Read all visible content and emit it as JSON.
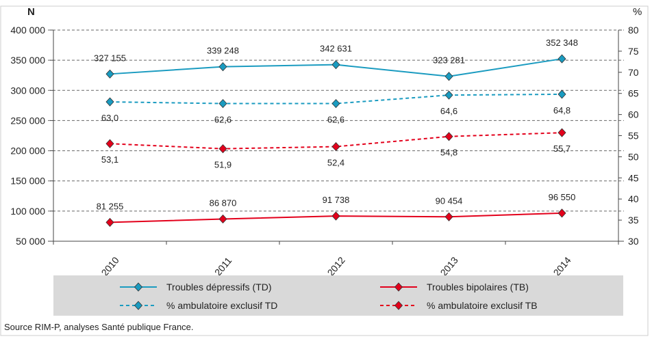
{
  "chart_data": {
    "type": "line",
    "categories": [
      "2010",
      "2011",
      "2012",
      "2013",
      "2014"
    ],
    "left_axis": {
      "label": "N",
      "ylim": [
        50000,
        400000
      ],
      "ticks": [
        "50 000",
        "100 000",
        "150 000",
        "200 000",
        "250 000",
        "300 000",
        "350 000",
        "400 000"
      ]
    },
    "right_axis": {
      "label": "%",
      "ylim": [
        30,
        80
      ],
      "ticks": [
        "30",
        "35",
        "40",
        "45",
        "50",
        "55",
        "60",
        "65",
        "70",
        "75",
        "80"
      ]
    },
    "grid": true,
    "series": [
      {
        "name": "Troubles  dépressifs (TD)",
        "axis": "left",
        "style": "solid",
        "color": "#1a9bc0",
        "values": [
          327155,
          339248,
          342631,
          323281,
          352348
        ],
        "labels": [
          "327 155",
          "339 248",
          "342 631",
          "323 281",
          "352 348"
        ],
        "label_pos": "above"
      },
      {
        "name": "Troubles bipolaires (TB)",
        "axis": "left",
        "style": "solid",
        "color": "#e3001b",
        "values": [
          81255,
          86870,
          91738,
          90454,
          96550
        ],
        "labels": [
          "81 255",
          "86 870",
          "91 738",
          "90 454",
          "96 550"
        ],
        "label_pos": "above"
      },
      {
        "name": "% ambulatoire exclusif TD",
        "axis": "right",
        "style": "dashed",
        "color": "#1a9bc0",
        "values": [
          63.0,
          62.6,
          62.6,
          64.6,
          64.8
        ],
        "labels": [
          "63,0",
          "62,6",
          "62,6",
          "64,6",
          "64,8"
        ],
        "label_pos": "below"
      },
      {
        "name": "% ambulatoire exclusif TB",
        "axis": "right",
        "style": "dashed",
        "color": "#e3001b",
        "values": [
          53.1,
          51.9,
          52.4,
          54.8,
          55.7
        ],
        "labels": [
          "53,1",
          "51,9",
          "52,4",
          "54,8",
          "55,7"
        ],
        "label_pos": "below"
      }
    ],
    "legend": "bottom",
    "source": "Source RIM-P, analyses Santé publique France."
  }
}
